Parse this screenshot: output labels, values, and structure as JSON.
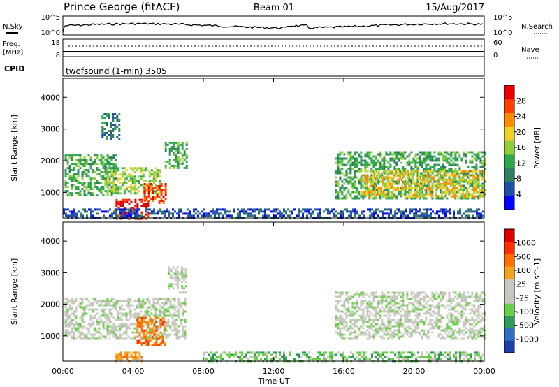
{
  "header": {
    "station": "Prince George (fitACF)",
    "beam": "Beam 01",
    "date": "15/Aug/2017"
  },
  "panels": {
    "nsky": {
      "left_label": "N.Sky",
      "right_label": "N.Search",
      "left_ticks": [
        "10^5",
        "10^0"
      ],
      "right_ticks": [
        "10^5",
        "10^0"
      ]
    },
    "freq": {
      "left_label_1": "Freq.",
      "left_label_2": "[MHz]",
      "right_label": "Nave",
      "left_ticks": [
        "18",
        "8"
      ],
      "right_ticks": [
        "60",
        "0"
      ]
    },
    "cpid": {
      "label": "CPID",
      "text": "twofsound (1-min) 3505"
    }
  },
  "colors": {
    "power_scale": [
      "#0000ff",
      "#1f4fa8",
      "#2f7f5f",
      "#2ea84b",
      "#8fcf3a",
      "#f0d02a",
      "#ff8c00",
      "#ff4000",
      "#e80000"
    ],
    "velocity_scale": [
      "#1a3fa8",
      "#2f6fbf",
      "#2e9a5a",
      "#6ad04a",
      "#c8c8c0",
      "#c8c8c0",
      "#f5a21a",
      "#ff7000",
      "#ff3000",
      "#e00000"
    ]
  },
  "chart_data": [
    {
      "type": "heatmap",
      "name": "power",
      "ylabel": "Slant Range [km]",
      "ylim": [
        200,
        4600
      ],
      "yticks": [
        "1000",
        "2000",
        "3000",
        "4000"
      ],
      "xlim_hours": [
        0,
        24
      ],
      "colorbar_label": "Power [dB]",
      "colorbar_ticks": [
        "4",
        "8",
        "12",
        "16",
        "20",
        "24",
        "28"
      ],
      "regions": [
        {
          "t0": 0.1,
          "t1": 3.0,
          "r0": 900,
          "r1": 2200,
          "level": 4
        },
        {
          "t0": 2.5,
          "t1": 5.5,
          "r0": 1000,
          "r1": 1800,
          "level": 5
        },
        {
          "t0": 3.0,
          "t1": 4.8,
          "r0": 200,
          "r1": 800,
          "level": 9
        },
        {
          "t0": 4.6,
          "t1": 5.8,
          "r0": 650,
          "r1": 1300,
          "level": 8
        },
        {
          "t0": 2.2,
          "t1": 3.2,
          "r0": 2700,
          "r1": 3500,
          "level": 3
        },
        {
          "t0": 5.8,
          "t1": 7.0,
          "r0": 1800,
          "r1": 2600,
          "level": 4
        },
        {
          "t0": 15.5,
          "t1": 24.0,
          "r0": 800,
          "r1": 2300,
          "level": 4
        },
        {
          "t0": 17.0,
          "t1": 24.0,
          "r0": 900,
          "r1": 1700,
          "level": 6
        },
        {
          "t0": 0.0,
          "t1": 24.0,
          "r0": 200,
          "r1": 500,
          "level": 2
        }
      ]
    },
    {
      "type": "heatmap",
      "name": "velocity",
      "ylabel": "Slant Range [km]",
      "ylim": [
        200,
        4600
      ],
      "yticks": [
        "1000",
        "2000",
        "3000",
        "4000"
      ],
      "xlabel": "Time UT",
      "xticks": [
        "00:00",
        "04:00",
        "08:00",
        "12:00",
        "16:00",
        "20:00",
        "00:00"
      ],
      "xlim_hours": [
        0,
        24
      ],
      "colorbar_label": "Velocity [m s^-1]",
      "colorbar_ticks": [
        "1000",
        "500",
        "100",
        "25",
        "-25",
        "-100",
        "-500",
        "-1000"
      ],
      "regions": [
        {
          "t0": 0.1,
          "t1": 7.0,
          "r0": 900,
          "r1": 2200,
          "level": 5
        },
        {
          "t0": 4.2,
          "t1": 5.8,
          "r0": 700,
          "r1": 1600,
          "level": 8
        },
        {
          "t0": 3.0,
          "t1": 4.5,
          "r0": 200,
          "r1": 500,
          "level": 7
        },
        {
          "t0": 6.0,
          "t1": 7.0,
          "r0": 2400,
          "r1": 3200,
          "level": 5
        },
        {
          "t0": 15.5,
          "t1": 24.0,
          "r0": 900,
          "r1": 2400,
          "level": 5
        },
        {
          "t0": 8.0,
          "t1": 24.0,
          "r0": 200,
          "r1": 500,
          "level": 4
        }
      ]
    }
  ]
}
